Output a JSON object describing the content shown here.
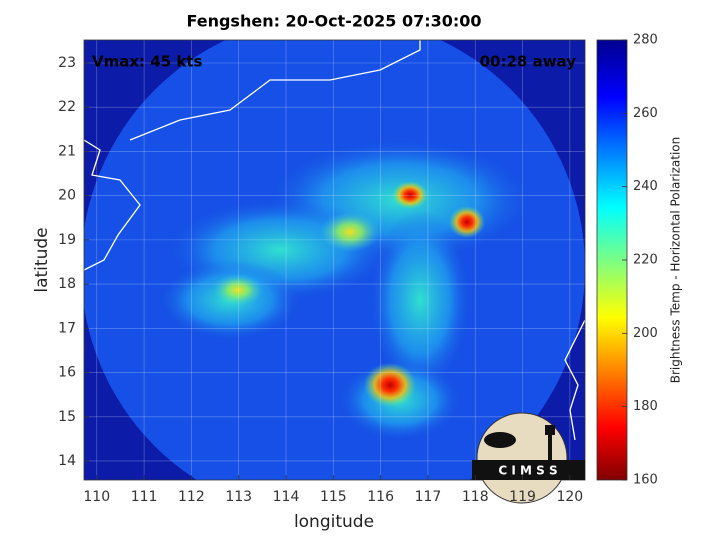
{
  "title": "Fengshen: 20-Oct-2025 07:30:00",
  "xlabel": "longitude",
  "ylabel": "latitude",
  "xlim": [
    109.73,
    120.32
  ],
  "ylim": [
    13.57,
    23.52
  ],
  "xticks": [
    110,
    111,
    112,
    113,
    114,
    115,
    116,
    117,
    118,
    119,
    120
  ],
  "yticks": [
    14,
    15,
    16,
    17,
    18,
    19,
    20,
    21,
    22,
    23
  ],
  "grid": true,
  "annotations": {
    "intensity": "Vmax: 45 kts",
    "time_offset": "00:28 away"
  },
  "colorbar": {
    "label": "Brightness Temp - Horizontal Polarization",
    "lim": [
      160,
      280
    ],
    "ticks": [
      160,
      180,
      200,
      220,
      240,
      260,
      280
    ],
    "colormap": "jet"
  },
  "logo": "C I M S S"
}
